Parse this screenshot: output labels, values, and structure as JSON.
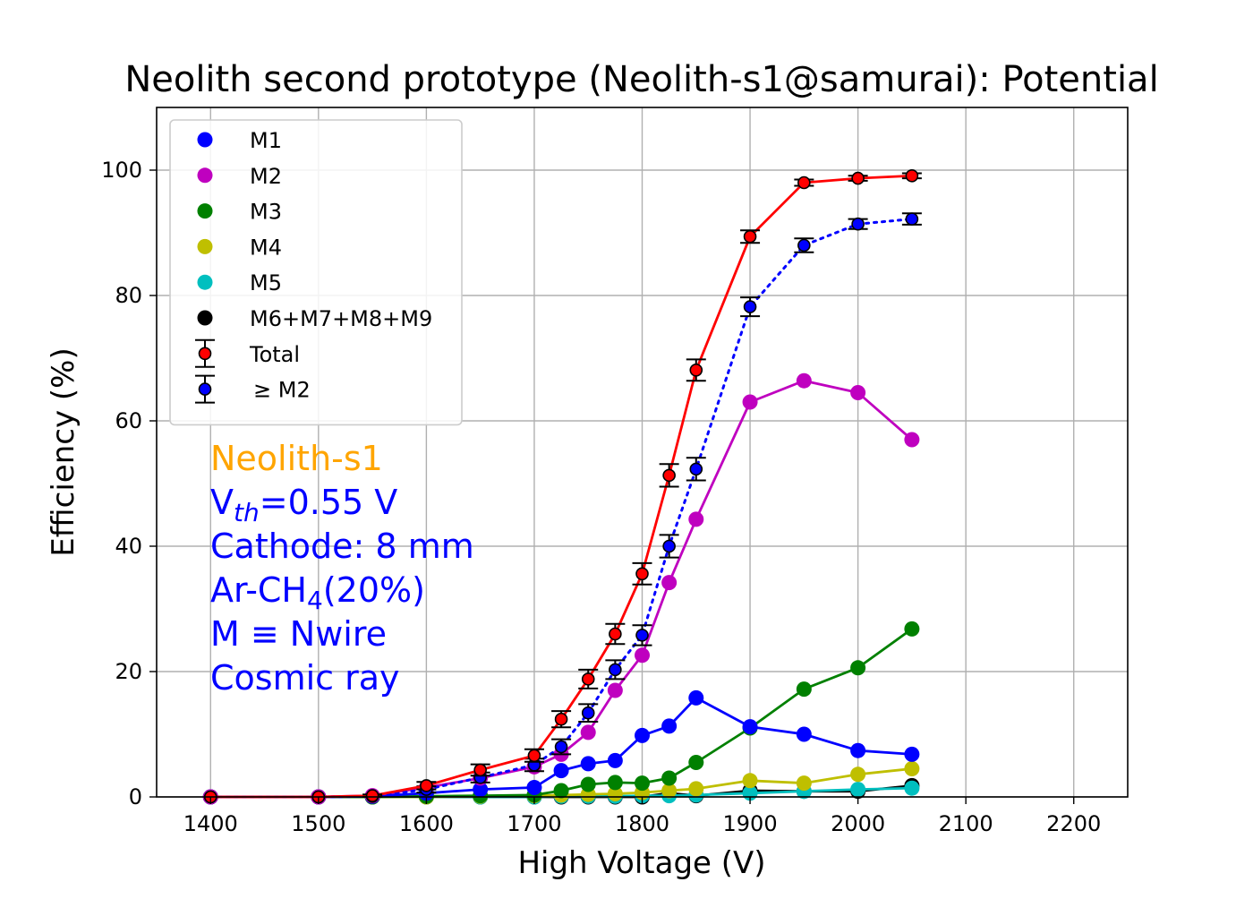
{
  "chart_data": {
    "type": "line",
    "title": "Neolith second prototype (Neolith-s1@samurai): Potential",
    "xlabel": "High Voltage (V)",
    "ylabel": "Efficiency (%)",
    "xlim": [
      1350,
      2250
    ],
    "ylim": [
      0,
      110
    ],
    "grid": true,
    "legend_position": "top-left",
    "x_ticks": [
      1400,
      1500,
      1600,
      1700,
      1800,
      1900,
      2000,
      2100,
      2200
    ],
    "y_ticks": [
      0,
      20,
      40,
      60,
      80,
      100
    ],
    "x_tick_labels": [
      "1400",
      "1500",
      "1600",
      "1700",
      "1800",
      "1900",
      "2000",
      "2100",
      "2200"
    ],
    "y_tick_labels": [
      "0",
      "20",
      "40",
      "60",
      "80",
      "100"
    ],
    "x": [
      1400,
      1500,
      1550,
      1600,
      1650,
      1700,
      1725,
      1750,
      1775,
      1800,
      1825,
      1850,
      1900,
      1950,
      2000,
      2050
    ],
    "series": [
      {
        "name": "M1",
        "color": "#0000ff",
        "marker": "circle",
        "line": "solid",
        "values": [
          0,
          0,
          0.1,
          0.6,
          1.2,
          1.5,
          4.2,
          5.3,
          5.8,
          9.8,
          11.3,
          15.8,
          11.2,
          10.0,
          7.4,
          6.8
        ]
      },
      {
        "name": "M2",
        "color": "#bf00bf",
        "marker": "circle",
        "line": "solid",
        "values": [
          0,
          0,
          0.2,
          1.5,
          3.0,
          4.8,
          6.8,
          10.3,
          17.0,
          22.6,
          34.2,
          44.3,
          63.0,
          66.4,
          64.5,
          57.0
        ]
      },
      {
        "name": "M3",
        "color": "#008000",
        "marker": "circle",
        "line": "solid",
        "values": [
          0,
          0,
          0,
          0.1,
          0.2,
          0.3,
          1.0,
          2.0,
          2.3,
          2.2,
          3.0,
          5.5,
          11.0,
          17.2,
          20.6,
          26.8
        ]
      },
      {
        "name": "M4",
        "color": "#bfbf00",
        "marker": "circle",
        "line": "solid",
        "values": [
          0,
          0,
          0,
          0,
          0.1,
          0.2,
          0.3,
          0.4,
          0.5,
          0.7,
          1.0,
          1.3,
          2.6,
          2.2,
          3.6,
          4.5
        ]
      },
      {
        "name": "M5",
        "color": "#00bfbf",
        "marker": "circle",
        "line": "solid",
        "values": [
          0,
          0,
          0,
          0,
          0,
          0,
          0.1,
          0.1,
          0.1,
          0.2,
          0.2,
          0.3,
          0.6,
          0.9,
          1.2,
          1.4
        ]
      },
      {
        "name": "M6+M7+M8+M9",
        "color": "#000000",
        "marker": "circle",
        "line": "solid",
        "values": [
          0,
          0,
          0,
          0,
          0,
          0,
          0,
          0,
          0,
          0,
          0.6,
          0.2,
          1.0,
          0.9,
          0.9,
          1.8
        ]
      },
      {
        "name": "Total",
        "color": "#ff0000",
        "edge": "#000000",
        "marker": "circle-errorbar",
        "line": "solid",
        "values": [
          0,
          0,
          0.2,
          1.8,
          4.3,
          6.6,
          12.4,
          18.8,
          26.0,
          35.6,
          51.3,
          68.1,
          89.4,
          98.0,
          98.7,
          99.1
        ],
        "errors": [
          0,
          0,
          0.2,
          0.6,
          0.9,
          1.0,
          1.3,
          1.5,
          1.6,
          1.7,
          1.8,
          1.7,
          1.0,
          0.5,
          0.4,
          0.4
        ]
      },
      {
        "name": "≥ M2",
        "color": "#0000ff",
        "edge": "#000000",
        "marker": "circle-errorbar",
        "line": "dotted",
        "values": [
          0,
          0,
          0.1,
          1.2,
          3.1,
          5.1,
          8.0,
          13.4,
          20.3,
          25.8,
          40.0,
          52.3,
          78.2,
          88.0,
          91.4,
          92.2
        ],
        "errors": [
          0,
          0,
          0.1,
          0.5,
          0.8,
          1.0,
          1.2,
          1.4,
          1.5,
          1.6,
          1.8,
          1.8,
          1.5,
          1.1,
          0.8,
          0.9
        ]
      }
    ],
    "annotations": [
      {
        "segments": [
          {
            "text": "Neolith-s1"
          }
        ],
        "color": "#ffa500"
      },
      {
        "segments": [
          {
            "text": "V"
          },
          {
            "text": "th",
            "style": "sub-italic"
          },
          {
            "text": "=0.55 V"
          }
        ],
        "color": "#0000ff"
      },
      {
        "segments": [
          {
            "text": "Cathode: 8 mm"
          }
        ],
        "color": "#0000ff"
      },
      {
        "segments": [
          {
            "text": "Ar-CH"
          },
          {
            "text": "4",
            "style": "sub"
          },
          {
            "text": "(20%)"
          }
        ],
        "color": "#0000ff"
      },
      {
        "segments": [
          {
            "text": "M ≡ Nwire"
          }
        ],
        "color": "#0000ff"
      },
      {
        "segments": [
          {
            "text": "Cosmic ray"
          }
        ],
        "color": "#0000ff"
      }
    ]
  }
}
